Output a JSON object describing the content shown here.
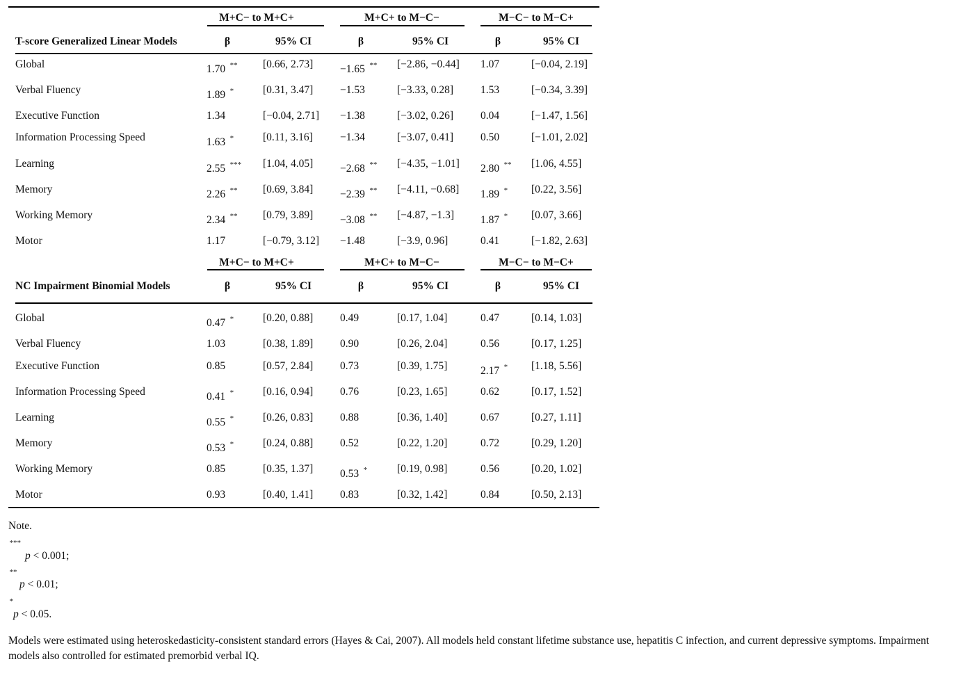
{
  "sections": [
    {
      "title": "T-score Generalized Linear Models",
      "groups": [
        "M+C− to M+C+",
        "M+C+ to M−C−",
        "M−C− to M−C+"
      ],
      "subheaders": [
        "β",
        "95% CI",
        "β",
        "95% CI",
        "β",
        "95% CI"
      ],
      "rows": [
        {
          "label": "Global",
          "cells": [
            {
              "beta": "1.70",
              "sig": "**",
              "ci": "[0.66, 2.73]"
            },
            {
              "beta": "−1.65",
              "sig": "**",
              "ci": "[−2.86, −0.44]"
            },
            {
              "beta": "1.07",
              "ci": "[−0.04, 2.19]"
            }
          ]
        },
        {
          "label": "Verbal Fluency",
          "cells": [
            {
              "beta": "1.89",
              "sig": "*",
              "ci": "[0.31, 3.47]"
            },
            {
              "beta": "−1.53",
              "ci": "[−3.33, 0.28]"
            },
            {
              "beta": "1.53",
              "ci": "[−0.34, 3.39]"
            }
          ]
        },
        {
          "label": "Executive Function",
          "cells": [
            {
              "beta": "1.34",
              "ci": "[−0.04, 2.71]"
            },
            {
              "beta": "−1.38",
              "ci": "[−3.02, 0.26]"
            },
            {
              "beta": "0.04",
              "ci": "[−1.47, 1.56]"
            }
          ]
        },
        {
          "label": "Information Processing Speed",
          "cells": [
            {
              "beta": "1.63",
              "sig": "*",
              "ci": "[0.11, 3.16]"
            },
            {
              "beta": "−1.34",
              "ci": "[−3.07, 0.41]"
            },
            {
              "beta": "0.50",
              "ci": "[−1.01, 2.02]"
            }
          ]
        },
        {
          "label": "Learning",
          "cells": [
            {
              "beta": "2.55",
              "sig": "***",
              "ci": "[1.04, 4.05]"
            },
            {
              "beta": "−2.68",
              "sig": "**",
              "ci": "[−4.35, −1.01]"
            },
            {
              "beta": "2.80",
              "sig": "**",
              "ci": "[1.06, 4.55]"
            }
          ]
        },
        {
          "label": "Memory",
          "cells": [
            {
              "beta": "2.26",
              "sig": "**",
              "ci": "[0.69, 3.84]"
            },
            {
              "beta": "−2.39",
              "sig": "**",
              "ci": "[−4.11, −0.68]"
            },
            {
              "beta": "1.89",
              "sig": "*",
              "ci": "[0.22, 3.56]"
            }
          ]
        },
        {
          "label": "Working Memory",
          "cells": [
            {
              "beta": "2.34",
              "sig": "**",
              "ci": "[0.79, 3.89]"
            },
            {
              "beta": "−3.08",
              "sig": "**",
              "ci": "[−4.87, −1.3]"
            },
            {
              "beta": "1.87",
              "sig": "*",
              "ci": "[0.07, 3.66]"
            }
          ]
        },
        {
          "label": "Motor",
          "cells": [
            {
              "beta": "1.17",
              "ci": "[−0.79, 3.12]"
            },
            {
              "beta": "−1.48",
              "ci": "[−3.9, 0.96]"
            },
            {
              "beta": "0.41",
              "ci": "[−1.82, 2.63]"
            }
          ]
        }
      ]
    },
    {
      "title": "NC Impairment Binomial Models",
      "groups": [
        "M+C− to M+C+",
        "M+C+ to M−C−",
        "M−C− to M−C+"
      ],
      "subheaders": [
        "β",
        "95% CI",
        "β",
        "95% CI",
        "β",
        "95% CI"
      ],
      "rows": [
        {
          "label": "Global",
          "cells": [
            {
              "beta": "0.47",
              "sig": "*",
              "ci": "[0.20, 0.88]"
            },
            {
              "beta": "0.49",
              "ci": "[0.17, 1.04]"
            },
            {
              "beta": "0.47",
              "ci": "[0.14, 1.03]"
            }
          ]
        },
        {
          "label": "Verbal Fluency",
          "cells": [
            {
              "beta": "1.03",
              "ci": "[0.38, 1.89]"
            },
            {
              "beta": "0.90",
              "ci": "[0.26, 2.04]"
            },
            {
              "beta": "0.56",
              "ci": "[0.17, 1.25]"
            }
          ]
        },
        {
          "label": "Executive Function",
          "cells": [
            {
              "beta": "0.85",
              "ci": "[0.57, 2.84]"
            },
            {
              "beta": "0.73",
              "ci": "[0.39, 1.75]"
            },
            {
              "beta": "2.17",
              "sig": "*",
              "ci": "[1.18, 5.56]"
            }
          ]
        },
        {
          "label": "Information Processing Speed",
          "cells": [
            {
              "beta": "0.41",
              "sig": "*",
              "ci": "[0.16, 0.94]"
            },
            {
              "beta": "0.76",
              "ci": "[0.23, 1.65]"
            },
            {
              "beta": "0.62",
              "ci": "[0.17, 1.52]"
            }
          ]
        },
        {
          "label": "Learning",
          "cells": [
            {
              "beta": "0.55",
              "sig": "*",
              "ci": "[0.26, 0.83]"
            },
            {
              "beta": "0.88",
              "ci": "[0.36, 1.40]"
            },
            {
              "beta": "0.67",
              "ci": "[0.27, 1.11]"
            }
          ]
        },
        {
          "label": "Memory",
          "cells": [
            {
              "beta": "0.53",
              "sig": "*",
              "ci": "[0.24, 0.88]"
            },
            {
              "beta": "0.52",
              "ci": "[0.22, 1.20]"
            },
            {
              "beta": "0.72",
              "ci": "[0.29, 1.20]"
            }
          ]
        },
        {
          "label": "Working Memory",
          "cells": [
            {
              "beta": "0.85",
              "ci": "[0.35, 1.37]"
            },
            {
              "beta": "0.53",
              "sig": "*",
              "ci": "[0.19, 0.98]"
            },
            {
              "beta": "0.56",
              "ci": "[0.20, 1.02]"
            }
          ]
        },
        {
          "label": "Motor",
          "cells": [
            {
              "beta": "0.93",
              "ci": "[0.40, 1.41]"
            },
            {
              "beta": "0.83",
              "ci": "[0.32, 1.42]"
            },
            {
              "beta": "0.84",
              "ci": "[0.50, 2.13]"
            }
          ]
        }
      ]
    }
  ],
  "note": {
    "title": "Note.",
    "items": [
      {
        "mark": "***",
        "symbol": "p",
        "text": "< 0.001;"
      },
      {
        "mark": "**",
        "symbol": "p",
        "text": "< 0.01;"
      },
      {
        "mark": "*",
        "symbol": "p",
        "text": "< 0.05."
      }
    ],
    "text": "Models were estimated using heteroskedasticity-consistent standard errors (Hayes & Cai, 2007). All models held constant lifetime substance use, hepatitis C infection, and current depressive symptoms. Impairment models also controlled for estimated premorbid verbal IQ."
  }
}
